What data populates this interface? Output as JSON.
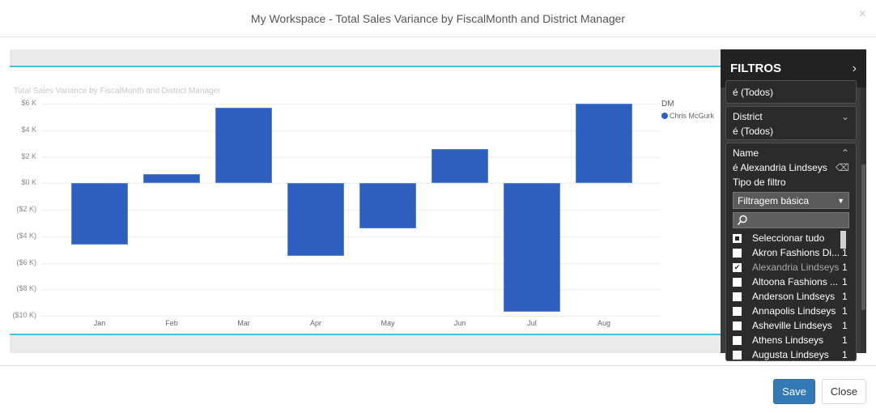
{
  "modal": {
    "title": "My Workspace - Total Sales Variance by FiscalMonth and District Manager",
    "close_icon": "×"
  },
  "chart_data": {
    "type": "bar",
    "title": "Total Sales Variance by FiscalMonth and District Manager",
    "xlabel": "",
    "ylabel": "",
    "categories": [
      "Jan",
      "Feb",
      "Mar",
      "Apr",
      "May",
      "Jun",
      "Jul",
      "Aug"
    ],
    "series": [
      {
        "name": "Chris McGurk",
        "color": "#2e5fbf",
        "values": [
          -4.6,
          0.7,
          5.7,
          -5.5,
          -3.4,
          2.6,
          -9.7,
          6.0
        ]
      }
    ],
    "units": "$K",
    "ylim": [
      -10,
      6
    ],
    "y_ticks": [
      "$6 K",
      "$4 K",
      "$2 K",
      "$0 K",
      "($2 K)",
      "($4 K)",
      "($6 K)",
      "($8 K)",
      "($10 K)"
    ],
    "grid": true,
    "legend": {
      "title": "DM",
      "position": "right",
      "entries": [
        "Chris McGurk"
      ]
    }
  },
  "filters": {
    "title": "FILTROS",
    "collapse_icon": "›",
    "cards": [
      {
        "value": "é (Todos)"
      },
      {
        "field": "District",
        "value": "é (Todos)"
      },
      {
        "field": "Name",
        "value": "é Alexandria Lindseys",
        "filter_type_label": "Tipo de filtro",
        "filter_type_value": "Filtragem básica",
        "items": [
          {
            "label": "Seleccionar tudo",
            "state": "partial",
            "count": ""
          },
          {
            "label": "Akron Fashions Di...",
            "state": "unchecked",
            "count": "1"
          },
          {
            "label": "Alexandria Lindseys",
            "state": "checked",
            "count": "1"
          },
          {
            "label": "Altoona Fashions ...",
            "state": "unchecked",
            "count": "1"
          },
          {
            "label": "Anderson Lindseys",
            "state": "unchecked",
            "count": "1"
          },
          {
            "label": "Annapolis Lindseys",
            "state": "unchecked",
            "count": "1"
          },
          {
            "label": "Asheville Lindseys",
            "state": "unchecked",
            "count": "1"
          },
          {
            "label": "Athens Lindseys",
            "state": "unchecked",
            "count": "1"
          },
          {
            "label": "Augusta Lindseys",
            "state": "unchecked",
            "count": "1"
          }
        ]
      }
    ]
  },
  "footer": {
    "save_label": "Save",
    "close_label": "Close"
  }
}
